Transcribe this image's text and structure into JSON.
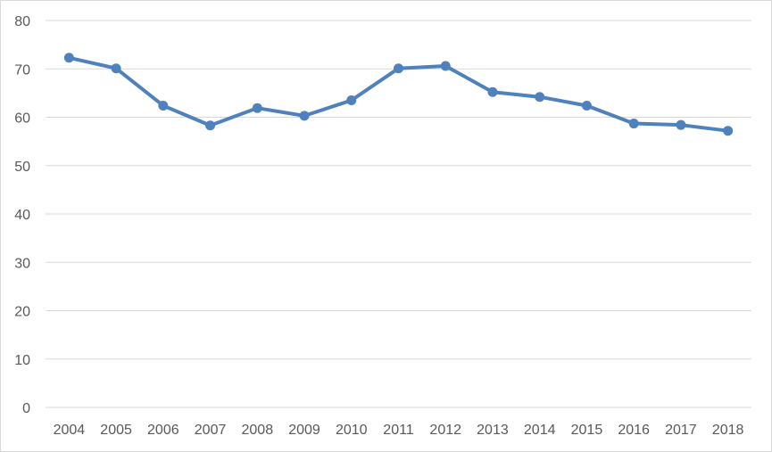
{
  "chart_data": {
    "type": "line",
    "categories": [
      "2004",
      "2005",
      "2006",
      "2007",
      "2008",
      "2009",
      "2010",
      "2011",
      "2012",
      "2013",
      "2014",
      "2015",
      "2016",
      "2017",
      "2018"
    ],
    "series": [
      {
        "values": [
          72.3,
          70.1,
          62.4,
          58.3,
          61.9,
          60.3,
          63.5,
          70.1,
          70.6,
          65.2,
          64.2,
          62.4,
          58.7,
          58.4,
          57.2
        ],
        "color": "#4f81bd"
      }
    ],
    "yticks": [
      "0",
      "10",
      "20",
      "30",
      "40",
      "50",
      "60",
      "70",
      "80"
    ],
    "ylim": [
      0,
      80
    ],
    "grid": true,
    "legend": "none",
    "title": "",
    "xlabel": "",
    "ylabel": ""
  }
}
